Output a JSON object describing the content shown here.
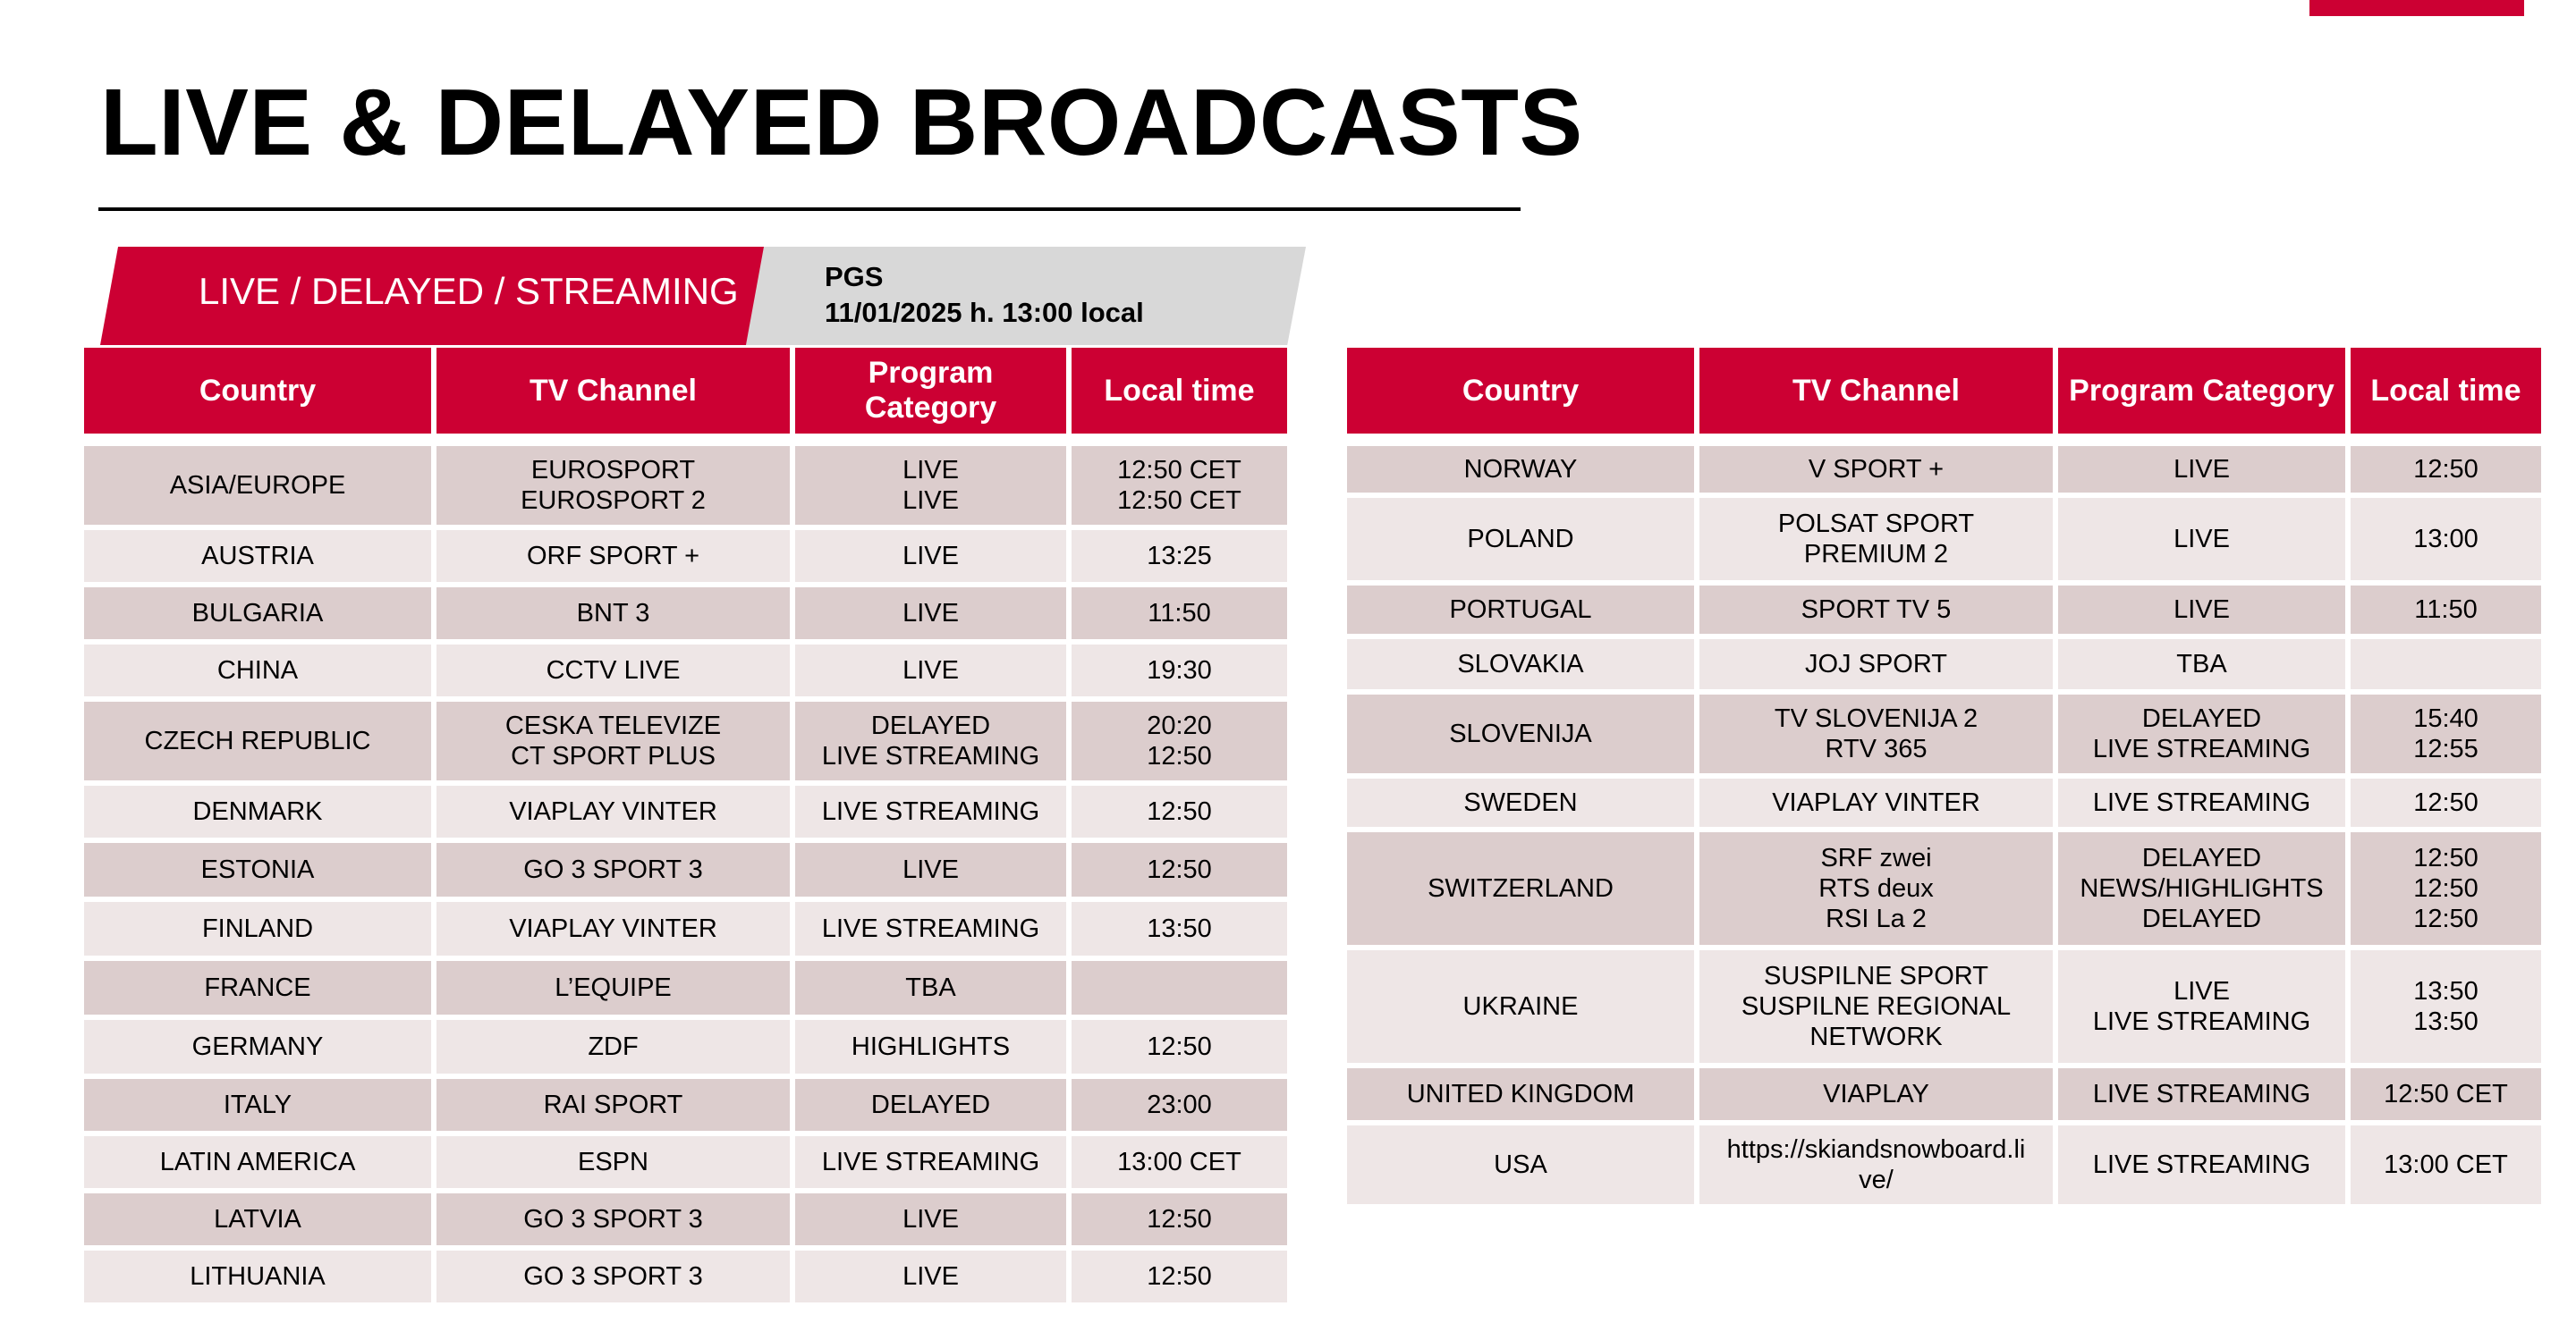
{
  "title": "LIVE & DELAYED BROADCASTS",
  "banner": {
    "label": "LIVE / DELAYED / STREAMING",
    "event": "PGS",
    "datetime": "11/01/2025 h. 13:00 local"
  },
  "colors": {
    "accent": "#cc0033",
    "row_dark": "#dccdcd",
    "row_light": "#eee6e6",
    "banner_gray": "#d8d8d8"
  },
  "left_table": {
    "headers": [
      "Country",
      "TV Channel",
      "Program Category",
      "Local time"
    ],
    "rows": [
      {
        "country": "ASIA/EUROPE",
        "channel": [
          "EUROSPORT",
          "EUROSPORT 2"
        ],
        "category": [
          "LIVE",
          "LIVE"
        ],
        "time": [
          "12:50 CET",
          "12:50 CET"
        ]
      },
      {
        "country": "AUSTRIA",
        "channel": [
          "ORF SPORT +"
        ],
        "category": [
          "LIVE"
        ],
        "time": [
          "13:25"
        ]
      },
      {
        "country": "BULGARIA",
        "channel": [
          "BNT 3"
        ],
        "category": [
          "LIVE"
        ],
        "time": [
          "11:50"
        ]
      },
      {
        "country": "CHINA",
        "channel": [
          "CCTV LIVE"
        ],
        "category": [
          "LIVE"
        ],
        "time": [
          "19:30"
        ]
      },
      {
        "country": "CZECH REPUBLIC",
        "channel": [
          "CESKA TELEVIZE",
          "CT SPORT PLUS"
        ],
        "category": [
          "DELAYED",
          "LIVE STREAMING"
        ],
        "time": [
          "20:20",
          "12:50"
        ]
      },
      {
        "country": "DENMARK",
        "channel": [
          "VIAPLAY VINTER"
        ],
        "category": [
          "LIVE STREAMING"
        ],
        "time": [
          "12:50"
        ]
      },
      {
        "country": "ESTONIA",
        "channel": [
          "GO 3 SPORT 3"
        ],
        "category": [
          "LIVE"
        ],
        "time": [
          "12:50"
        ]
      },
      {
        "country": "FINLAND",
        "channel": [
          "VIAPLAY VINTER"
        ],
        "category": [
          "LIVE STREAMING"
        ],
        "time": [
          "13:50"
        ]
      },
      {
        "country": "FRANCE",
        "channel": [
          "L’EQUIPE"
        ],
        "category": [
          "TBA"
        ],
        "time": [
          ""
        ]
      },
      {
        "country": "GERMANY",
        "channel": [
          "ZDF"
        ],
        "category": [
          "HIGHLIGHTS"
        ],
        "time": [
          "12:50"
        ]
      },
      {
        "country": "ITALY",
        "channel": [
          "RAI SPORT"
        ],
        "category": [
          "DELAYED"
        ],
        "time": [
          "23:00"
        ]
      },
      {
        "country": "LATIN AMERICA",
        "channel": [
          "ESPN"
        ],
        "category": [
          "LIVE STREAMING"
        ],
        "time": [
          "13:00 CET"
        ]
      },
      {
        "country": "LATVIA",
        "channel": [
          "GO 3 SPORT 3"
        ],
        "category": [
          "LIVE"
        ],
        "time": [
          "12:50"
        ]
      },
      {
        "country": "LITHUANIA",
        "channel": [
          "GO 3 SPORT 3"
        ],
        "category": [
          "LIVE"
        ],
        "time": [
          "12:50"
        ]
      }
    ]
  },
  "right_table": {
    "headers": [
      "Country",
      "TV Channel",
      "Program Category",
      "Local time"
    ],
    "rows": [
      {
        "country": "NORWAY",
        "channel": [
          "V SPORT +"
        ],
        "category": [
          "LIVE"
        ],
        "time": [
          "12:50"
        ]
      },
      {
        "country": "POLAND",
        "channel": [
          "POLSAT SPORT",
          "PREMIUM 2"
        ],
        "category": [
          "LIVE"
        ],
        "time": [
          "13:00"
        ]
      },
      {
        "country": "PORTUGAL",
        "channel": [
          "SPORT TV 5"
        ],
        "category": [
          "LIVE"
        ],
        "time": [
          "11:50"
        ]
      },
      {
        "country": "SLOVAKIA",
        "channel": [
          "JOJ SPORT"
        ],
        "category": [
          "TBA"
        ],
        "time": [
          ""
        ]
      },
      {
        "country": "SLOVENIJA",
        "channel": [
          "TV SLOVENIJA 2",
          "RTV 365"
        ],
        "category": [
          "DELAYED",
          "LIVE STREAMING"
        ],
        "time": [
          "15:40",
          "12:55"
        ]
      },
      {
        "country": "SWEDEN",
        "channel": [
          "VIAPLAY VINTER"
        ],
        "category": [
          "LIVE STREAMING"
        ],
        "time": [
          "12:50"
        ]
      },
      {
        "country": "SWITZERLAND",
        "channel": [
          "SRF zwei",
          "RTS deux",
          "RSI La 2"
        ],
        "category": [
          "DELAYED",
          "NEWS/HIGHLIGHTS",
          "DELAYED"
        ],
        "time": [
          "12:50",
          "12:50",
          "12:50"
        ]
      },
      {
        "country": "UKRAINE",
        "channel": [
          "SUSPILNE SPORT",
          "SUSPILNE REGIONAL",
          "NETWORK"
        ],
        "category": [
          "LIVE",
          "LIVE STREAMING"
        ],
        "time": [
          "13:50",
          "13:50"
        ]
      },
      {
        "country": "UNITED KINGDOM",
        "channel": [
          "VIAPLAY"
        ],
        "category": [
          "LIVE STREAMING"
        ],
        "time": [
          "12:50 CET"
        ]
      },
      {
        "country": "USA",
        "channel": [
          "https://skiandsnowboard.li",
          "ve/"
        ],
        "category": [
          "LIVE STREAMING"
        ],
        "time": [
          "13:00 CET"
        ]
      }
    ]
  }
}
